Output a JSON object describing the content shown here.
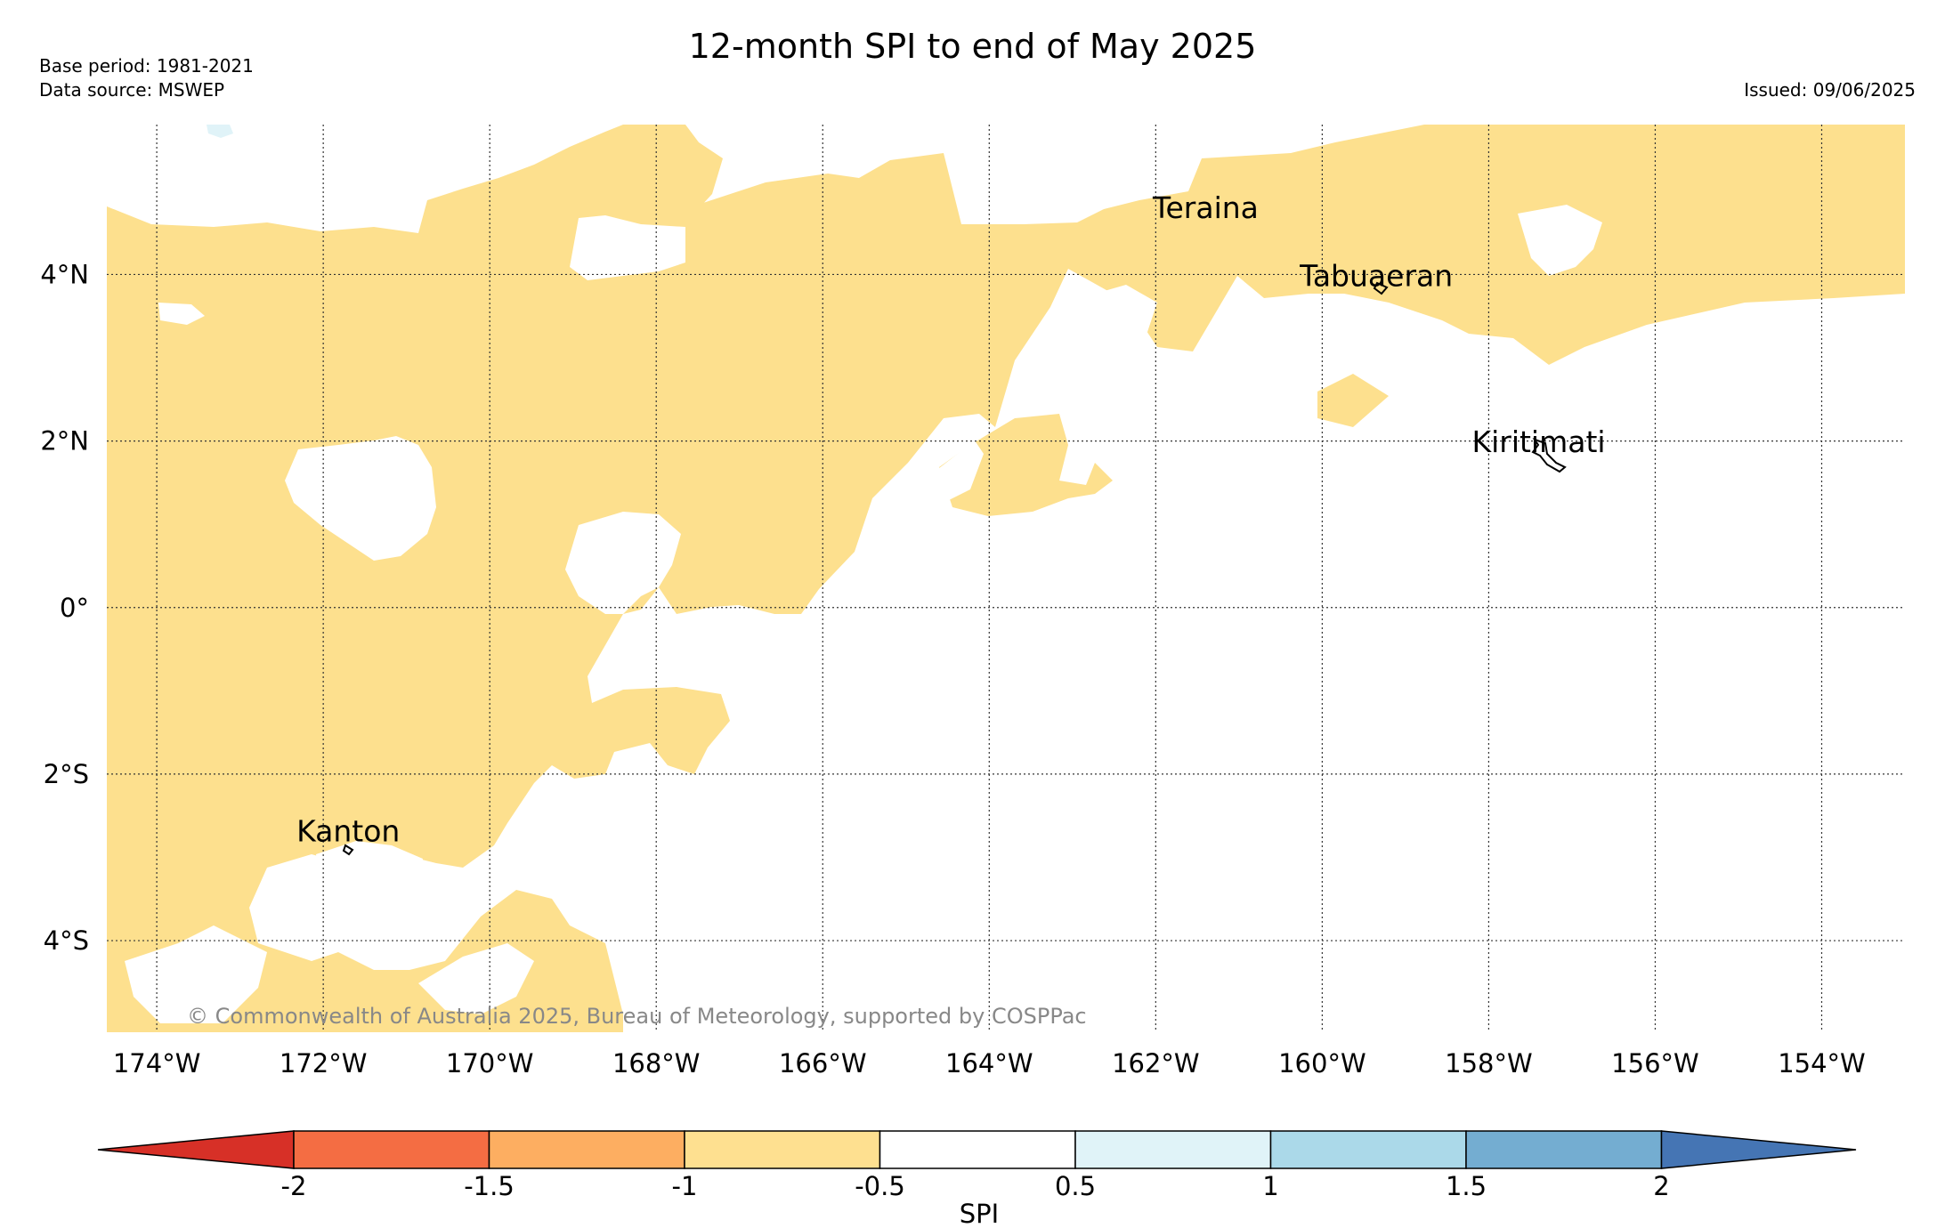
{
  "header": {
    "title": "12-month SPI to end of May 2025",
    "base_period": "Base period: 1981-2021",
    "data_source": "Data source: MSWEP",
    "issued": "Issued: 09/06/2025"
  },
  "map": {
    "lon_range": [
      -174.6,
      -153.0
    ],
    "lat_range": [
      -5.1,
      5.8
    ],
    "lon_ticks": [
      {
        "value": -174,
        "label": "174°W"
      },
      {
        "value": -172,
        "label": "172°W"
      },
      {
        "value": -170,
        "label": "170°W"
      },
      {
        "value": -168,
        "label": "168°W"
      },
      {
        "value": -166,
        "label": "166°W"
      },
      {
        "value": -164,
        "label": "164°W"
      },
      {
        "value": -162,
        "label": "162°W"
      },
      {
        "value": -160,
        "label": "160°W"
      },
      {
        "value": -158,
        "label": "158°W"
      },
      {
        "value": -156,
        "label": "156°W"
      },
      {
        "value": -154,
        "label": "154°W"
      }
    ],
    "lat_ticks": [
      {
        "value": 4,
        "label": "4°N"
      },
      {
        "value": 2,
        "label": "2°N"
      },
      {
        "value": 0,
        "label": "0°"
      },
      {
        "value": -2,
        "label": "2°S"
      },
      {
        "value": -4,
        "label": "4°S"
      }
    ],
    "places": [
      {
        "name": "Teraina",
        "lon": -161.4,
        "lat": 4.68
      },
      {
        "name": "Tabuaeran",
        "lon": -159.35,
        "lat": 3.86
      },
      {
        "name": "Kiritimati",
        "lon": -157.4,
        "lat": 1.87
      },
      {
        "name": "Kanton",
        "lon": -171.7,
        "lat": -2.81
      }
    ],
    "dry_class_color": "#fde08e",
    "background_color": "#ffffff",
    "copyright": "© Commonwealth of Australia 2025, Bureau of Meteorology, supported by COSPPac"
  },
  "colorbar": {
    "label": "SPI",
    "ticks": [
      "-2",
      "-1.5",
      "-1",
      "-0.5",
      "0.5",
      "1",
      "1.5",
      "2"
    ],
    "colors": [
      "#d73027",
      "#f46d43",
      "#fdae61",
      "#fee090",
      "#ffffff",
      "#e0f3f8",
      "#abd9e9",
      "#74add1",
      "#4575b4"
    ]
  }
}
